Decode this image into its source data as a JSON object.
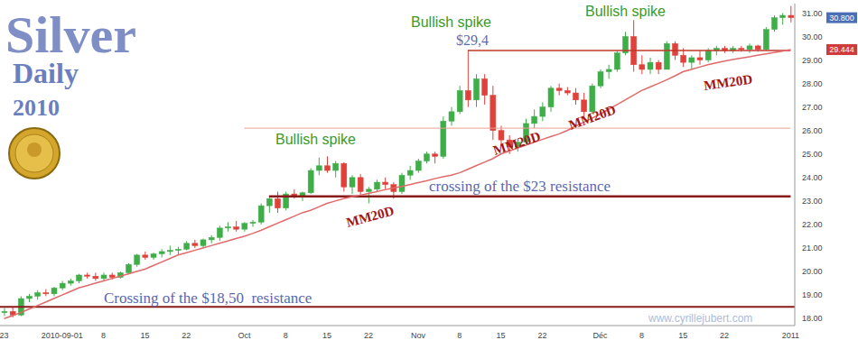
{
  "chart_data": {
    "type": "candlestick",
    "title": "Silver",
    "subtitle": [
      "Daily",
      "2010"
    ],
    "categories": [
      "23",
      null,
      null,
      null,
      null,
      null,
      null,
      "2010-09-01",
      null,
      null,
      null,
      null,
      "8",
      null,
      null,
      null,
      null,
      "15",
      null,
      null,
      null,
      null,
      "22",
      null,
      null,
      null,
      null,
      null,
      null,
      "Oct",
      null,
      null,
      null,
      null,
      "8",
      null,
      null,
      null,
      null,
      "15",
      null,
      null,
      null,
      null,
      "22",
      null,
      null,
      null,
      null,
      null,
      "Nov",
      null,
      null,
      null,
      null,
      "8",
      null,
      null,
      null,
      null,
      "15",
      null,
      null,
      null,
      null,
      "22",
      null,
      null,
      null,
      null,
      null,
      null,
      "Déc",
      null,
      null,
      null,
      null,
      "8",
      null,
      null,
      null,
      null,
      "15",
      null,
      null,
      null,
      null,
      "22",
      null,
      null,
      null,
      null,
      null,
      null,
      null,
      "2011"
    ],
    "open": [
      18.25,
      18.3,
      18.15,
      18.85,
      18.95,
      19.1,
      19.05,
      19.3,
      19.5,
      19.6,
      19.85,
      19.8,
      19.7,
      19.85,
      19.75,
      19.95,
      20.3,
      20.7,
      20.6,
      20.75,
      20.85,
      20.9,
      20.95,
      21.2,
      21.1,
      21.35,
      21.45,
      21.85,
      21.9,
      21.8,
      22.05,
      22.1,
      22.8,
      23.1,
      22.7,
      23.3,
      23.2,
      23.35,
      24.3,
      24.5,
      24.3,
      24.6,
      23.6,
      24.0,
      23.4,
      23.5,
      23.8,
      23.7,
      23.4,
      24.1,
      24.3,
      24.7,
      25.0,
      24.9,
      26.4,
      26.8,
      27.7,
      27.3,
      28.2,
      27.5,
      26.0,
      25.6,
      25.3,
      25.5,
      26.3,
      26.6,
      27.0,
      27.8,
      27.7,
      27.6,
      27.3,
      26.8,
      27.9,
      28.5,
      28.6,
      29.3,
      30.0,
      28.8,
      28.6,
      28.9,
      28.6,
      29.7,
      29.2,
      28.9,
      29.1,
      29.0,
      29.4,
      29.5,
      29.4,
      29.5,
      29.45,
      29.6,
      29.45,
      30.3,
      30.8,
      30.9
    ],
    "high": [
      18.45,
      18.5,
      18.95,
      19.05,
      19.2,
      19.25,
      19.35,
      19.6,
      19.7,
      19.9,
      19.95,
      19.95,
      19.95,
      19.95,
      20.0,
      20.35,
      20.75,
      20.85,
      20.8,
      20.95,
      21.1,
      21.05,
      21.3,
      21.35,
      21.4,
      21.55,
      21.95,
      22.1,
      22.15,
      22.1,
      22.2,
      22.9,
      23.2,
      23.4,
      23.4,
      23.5,
      23.4,
      24.4,
      24.85,
      24.9,
      24.7,
      24.65,
      24.1,
      24.15,
      23.6,
      23.9,
      24.0,
      23.8,
      24.2,
      24.5,
      24.8,
      25.1,
      25.1,
      26.6,
      27.0,
      27.9,
      29.4,
      28.4,
      28.4,
      27.9,
      26.2,
      25.8,
      25.6,
      26.5,
      26.9,
      27.2,
      27.9,
      28.0,
      27.85,
      27.8,
      27.6,
      28.0,
      28.6,
      28.8,
      29.4,
      30.2,
      30.7,
      29.2,
      29.1,
      29.0,
      29.8,
      29.8,
      29.5,
      29.2,
      29.4,
      29.5,
      29.6,
      29.6,
      29.6,
      29.6,
      29.7,
      29.65,
      30.4,
      30.9,
      31.0,
      31.3
    ],
    "low": [
      18.1,
      18.05,
      18.1,
      18.7,
      18.8,
      18.95,
      18.95,
      19.2,
      19.4,
      19.5,
      19.7,
      19.6,
      19.6,
      19.65,
      19.7,
      19.9,
      20.2,
      20.5,
      20.5,
      20.6,
      20.7,
      20.7,
      20.9,
      21.0,
      21.0,
      21.2,
      21.3,
      21.7,
      21.7,
      21.7,
      21.9,
      22.0,
      22.5,
      22.5,
      22.6,
      23.1,
      23.0,
      23.3,
      24.1,
      24.2,
      24.0,
      23.4,
      23.3,
      23.2,
      22.9,
      23.4,
      23.5,
      23.1,
      23.3,
      23.9,
      24.2,
      24.6,
      24.6,
      24.8,
      26.2,
      26.7,
      27.0,
      27.0,
      27.1,
      25.6,
      25.4,
      25.0,
      25.1,
      25.4,
      26.1,
      26.4,
      26.8,
      27.5,
      27.5,
      27.1,
      26.5,
      26.7,
      27.8,
      28.2,
      28.5,
      29.2,
      28.5,
      28.4,
      28.4,
      28.4,
      28.6,
      29.0,
      28.7,
      28.6,
      28.8,
      28.9,
      29.2,
      29.3,
      29.3,
      29.35,
      29.3,
      29.35,
      29.4,
      30.2,
      30.5,
      30.6
    ],
    "close": [
      18.3,
      18.15,
      18.85,
      18.95,
      19.1,
      19.05,
      19.3,
      19.5,
      19.6,
      19.85,
      19.8,
      19.7,
      19.85,
      19.75,
      19.95,
      20.3,
      20.7,
      20.6,
      20.75,
      20.85,
      20.9,
      20.95,
      21.2,
      21.1,
      21.35,
      21.45,
      21.85,
      21.9,
      21.8,
      22.05,
      22.1,
      22.8,
      23.1,
      22.7,
      23.3,
      23.2,
      23.35,
      24.3,
      24.5,
      24.3,
      24.6,
      23.6,
      24.0,
      23.4,
      23.5,
      23.8,
      23.7,
      23.4,
      24.1,
      24.3,
      24.7,
      25.0,
      24.9,
      26.4,
      26.8,
      27.7,
      27.3,
      28.2,
      27.5,
      26.0,
      25.6,
      25.3,
      25.5,
      26.3,
      26.6,
      27.0,
      27.8,
      27.7,
      27.6,
      27.3,
      26.8,
      27.9,
      28.5,
      28.6,
      29.3,
      30.0,
      28.8,
      28.6,
      28.9,
      28.6,
      29.7,
      29.2,
      28.9,
      29.1,
      29.0,
      29.4,
      29.5,
      29.4,
      29.5,
      29.45,
      29.6,
      29.45,
      30.3,
      30.8,
      30.9,
      30.8
    ],
    "series": [
      {
        "name": "MM20D",
        "color": "#e06a6a",
        "values": [
          18.0,
          18.12,
          18.25,
          18.4,
          18.55,
          18.7,
          18.85,
          19.0,
          19.15,
          19.3,
          19.4,
          19.5,
          19.6,
          19.7,
          19.8,
          19.9,
          20.0,
          20.1,
          20.25,
          20.4,
          20.55,
          20.7,
          20.8,
          20.9,
          21.0,
          21.1,
          21.2,
          21.3,
          21.4,
          21.5,
          21.62,
          21.75,
          21.9,
          22.05,
          22.2,
          22.35,
          22.5,
          22.6,
          22.75,
          22.9,
          23.0,
          23.1,
          23.18,
          23.25,
          23.32,
          23.4,
          23.48,
          23.55,
          23.62,
          23.7,
          23.78,
          23.86,
          23.95,
          24.03,
          24.1,
          24.2,
          24.35,
          24.5,
          24.65,
          24.8,
          25.0,
          25.12,
          25.25,
          25.37,
          25.5,
          25.62,
          25.74,
          25.85,
          26.0,
          26.18,
          26.35,
          26.52,
          26.7,
          26.9,
          27.1,
          27.3,
          27.5,
          27.7,
          27.85,
          28.0,
          28.15,
          28.32,
          28.5,
          28.6,
          28.7,
          28.8,
          28.88,
          28.95,
          29.02,
          29.08,
          29.14,
          29.2,
          29.26,
          29.32,
          29.38,
          29.444
        ]
      }
    ],
    "ylim": [
      17.7,
      31.4
    ],
    "yticks": [
      {
        "value": 18,
        "label": "18.00"
      },
      {
        "value": 19,
        "label": "19.00"
      },
      {
        "value": 20,
        "label": "20.00"
      },
      {
        "value": 21,
        "label": "21.00"
      },
      {
        "value": 22,
        "label": "22.00"
      },
      {
        "value": 23,
        "label": "23.00"
      },
      {
        "value": 24,
        "label": "24.00"
      },
      {
        "value": 25,
        "label": "25.00"
      },
      {
        "value": 26,
        "label": "26.00"
      },
      {
        "value": 27,
        "label": "27.00"
      },
      {
        "value": 28,
        "label": "28.00"
      },
      {
        "value": 29,
        "label": "29.00"
      },
      {
        "value": 30,
        "label": "30.00"
      },
      {
        "value": 31,
        "label": "31.00"
      }
    ],
    "grid": false,
    "levels": [
      {
        "value": 18.5,
        "color": "#8b1a1a"
      },
      {
        "value": 23.2,
        "color": "#8b1a1a",
        "from": 32
      },
      {
        "value": 26.1,
        "color": "#e8a090",
        "from": 29
      },
      {
        "value": 29.4,
        "color": "#c0392b",
        "from": 56
      }
    ],
    "price_labels": [
      {
        "value": 30.8,
        "label": "30.800",
        "color": "#4a6fb5"
      },
      {
        "value": 29.444,
        "label": "29.444",
        "color": "#d03a3a"
      }
    ],
    "annotations": [
      {
        "text": "Bullish spike",
        "color": "#3a9a2a"
      },
      {
        "text": "Bullish spike",
        "color": "#3a9a2a"
      },
      {
        "text": "Bullish spike",
        "color": "#3a9a2a"
      },
      {
        "text": "$29,4",
        "color": "#5a6fb0"
      },
      {
        "text": "crossing of the $23 resistance",
        "color": "#5a68b0"
      },
      {
        "text": "Crossing of the $18,50  resistance",
        "color": "#5a68b0"
      },
      {
        "text": "MM20D",
        "color": "#a31515"
      },
      {
        "text": "MM20D",
        "color": "#a31515"
      },
      {
        "text": "MM20D",
        "color": "#a31515"
      },
      {
        "text": "MM20D",
        "color": "#a31515"
      }
    ],
    "watermark": "www.cyrillejubert.com"
  }
}
